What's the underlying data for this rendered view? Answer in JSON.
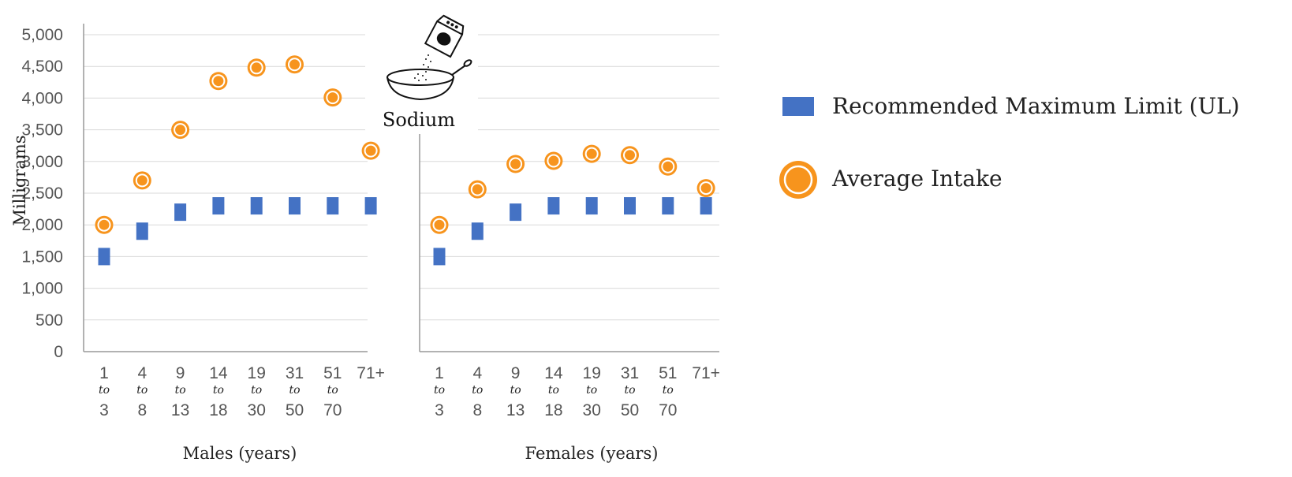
{
  "chart_data": {
    "type": "scatter",
    "title": "Sodium",
    "ylabel": "Milligrams",
    "ylim": [
      0,
      5000
    ],
    "yticks": [
      "0",
      "500",
      "1,000",
      "1,500",
      "2,000",
      "2,500",
      "3,000",
      "3,500",
      "4,000",
      "4,500",
      "5,000"
    ],
    "grid": true,
    "legend_position": "right",
    "categories": [
      {
        "top": "1",
        "mid": "to",
        "bot": "3"
      },
      {
        "top": "4",
        "mid": "to",
        "bot": "8"
      },
      {
        "top": "9",
        "mid": "to",
        "bot": "13"
      },
      {
        "top": "14",
        "mid": "to",
        "bot": "18"
      },
      {
        "top": "19",
        "mid": "to",
        "bot": "30"
      },
      {
        "top": "31",
        "mid": "to",
        "bot": "50"
      },
      {
        "top": "51",
        "mid": "to",
        "bot": "70"
      },
      {
        "top": "71+",
        "mid": "",
        "bot": ""
      }
    ],
    "panels": [
      {
        "xlabel": "Males (years)",
        "series": [
          {
            "name": "Recommended Maximum Limit (UL)",
            "marker": "square",
            "color": "#4472c4",
            "values": [
              1500,
              1900,
              2200,
              2300,
              2300,
              2300,
              2300,
              2300
            ]
          },
          {
            "name": "Average Intake",
            "marker": "circle",
            "color": "#f7941d",
            "values": [
              2000,
              2700,
              3500,
              4270,
              4480,
              4530,
              4010,
              3170
            ]
          }
        ]
      },
      {
        "xlabel": "Females (years)",
        "series": [
          {
            "name": "Recommended Maximum Limit (UL)",
            "marker": "square",
            "color": "#4472c4",
            "values": [
              1500,
              1900,
              2200,
              2300,
              2300,
              2300,
              2300,
              2300
            ]
          },
          {
            "name": "Average Intake",
            "marker": "circle",
            "color": "#f7941d",
            "values": [
              2000,
              2560,
              2960,
              3010,
              3120,
              3100,
              2920,
              2580
            ]
          }
        ]
      }
    ],
    "legend": [
      {
        "label": "Recommended Maximum Limit (UL)",
        "marker": "square",
        "color": "#4472c4"
      },
      {
        "label": "Average Intake",
        "marker": "circle",
        "color": "#f7941d"
      }
    ]
  },
  "icons": {
    "logo": "salt-shaker-bowl-icon"
  }
}
